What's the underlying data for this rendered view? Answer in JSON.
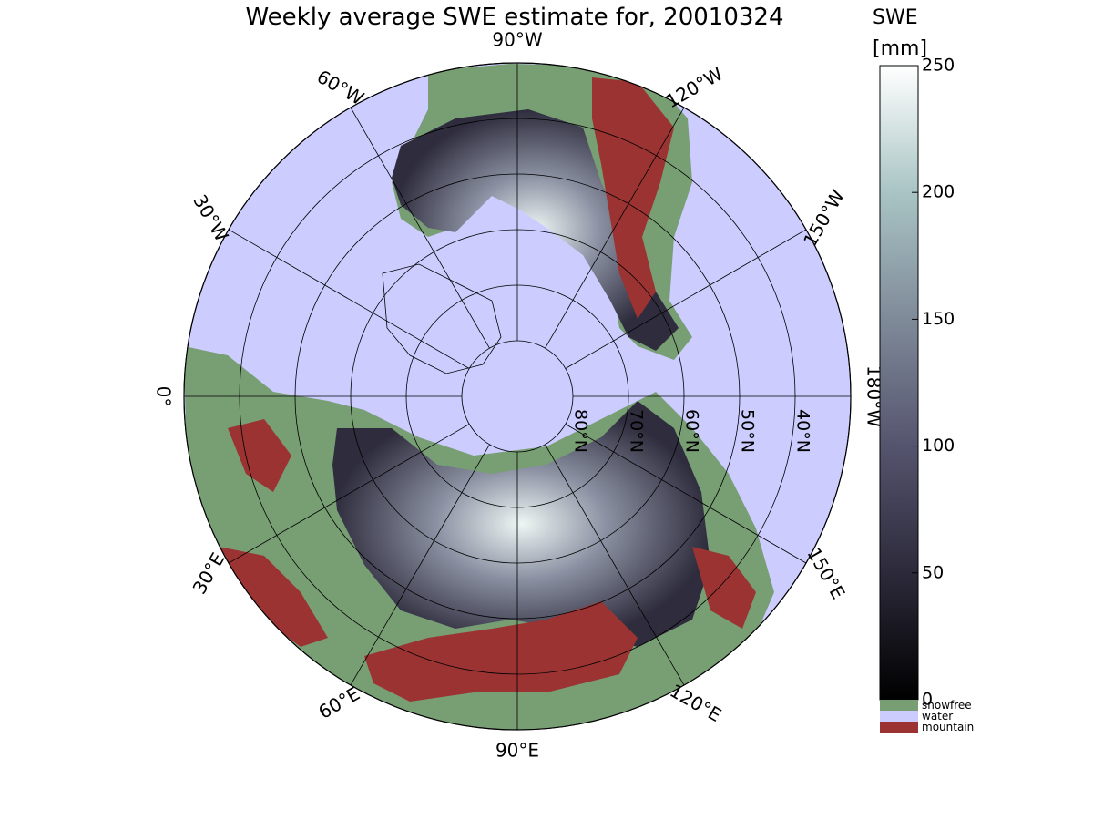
{
  "title": "Weekly average SWE estimate for, 20010324",
  "colorbar": {
    "label_line1": "SWE",
    "label_line2": "[mm]",
    "ticks": [
      0,
      50,
      100,
      150,
      200,
      250
    ],
    "range": [
      0,
      250
    ],
    "gradient_stops": [
      "#000000",
      "#2c2a3a",
      "#55546e",
      "#7f8a99",
      "#a9c4c4",
      "#ffffff"
    ]
  },
  "legend": [
    {
      "label": "snowfree",
      "color": "#789e74"
    },
    {
      "label": "water",
      "color": "#ccccff"
    },
    {
      "label": "mountain",
      "color": "#9b3333"
    }
  ],
  "longitude_labels": [
    {
      "text": "90°W",
      "lon": -90
    },
    {
      "text": "120°W",
      "lon": -120
    },
    {
      "text": "150°W",
      "lon": -150
    },
    {
      "text": "180°W",
      "lon": 180
    },
    {
      "text": "150°E",
      "lon": 150
    },
    {
      "text": "120°E",
      "lon": 120
    },
    {
      "text": "90°E",
      "lon": 90
    },
    {
      "text": "60°E",
      "lon": 60
    },
    {
      "text": "30°E",
      "lon": 30
    },
    {
      "text": "0°",
      "lon": 0
    },
    {
      "text": "30°W",
      "lon": -30
    },
    {
      "text": "60°W",
      "lon": -60
    }
  ],
  "latitude_labels": [
    {
      "text": "80°N",
      "lat": 80
    },
    {
      "text": "70°N",
      "lat": 70
    },
    {
      "text": "60°N",
      "lat": 60
    },
    {
      "text": "50°N",
      "lat": 50
    },
    {
      "text": "40°N",
      "lat": 40
    }
  ],
  "colors": {
    "water": "#ccccff",
    "snowfree": "#789e74",
    "mountain": "#9b3333",
    "swe_low": "#2a2838",
    "swe_high": "#e8f2f0"
  }
}
